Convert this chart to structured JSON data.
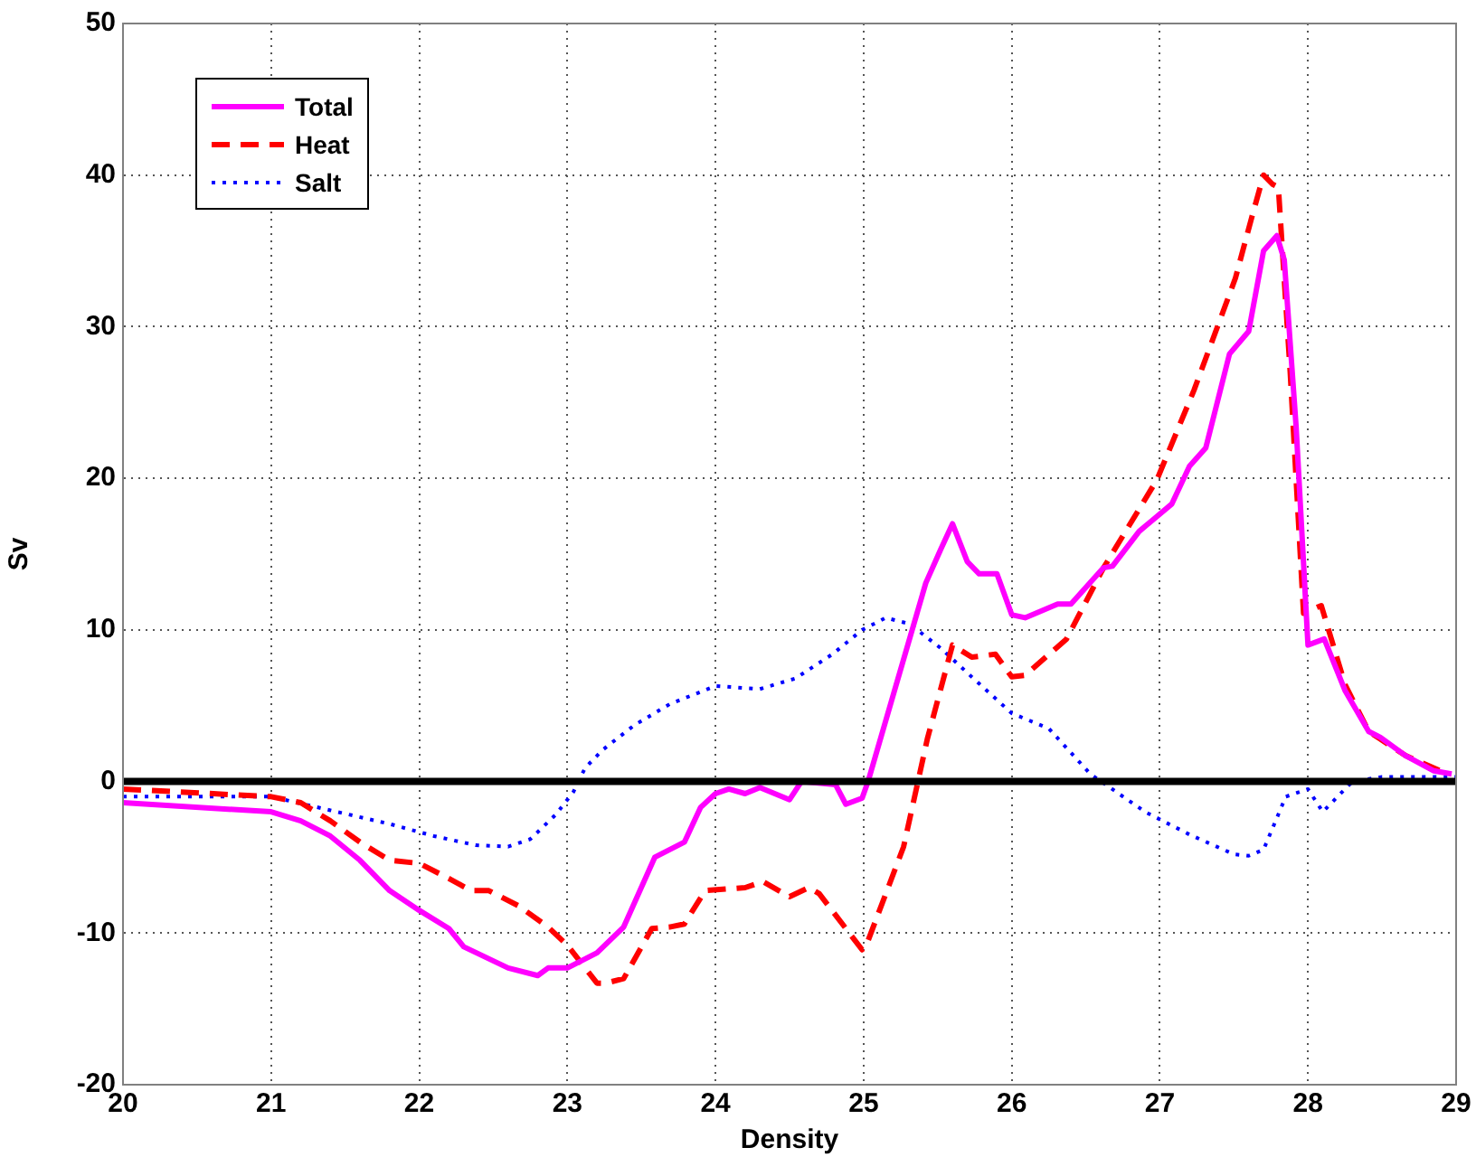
{
  "chart_data": {
    "type": "line",
    "xlabel": "Density",
    "ylabel": "Sv",
    "xlim": [
      20,
      29
    ],
    "xticks": [
      20,
      21,
      22,
      23,
      24,
      25,
      26,
      27,
      28,
      29
    ],
    "ylim": [
      -20,
      50
    ],
    "yticks": [
      -20,
      -10,
      0,
      10,
      20,
      30,
      40,
      50
    ],
    "grid": true,
    "legend": "top left",
    "marker": "none",
    "ref_lines": [
      {
        "axis": "y",
        "value": 0,
        "color": "#000000",
        "line_style": "solid"
      }
    ],
    "series": [
      {
        "name": "Total",
        "color": "#ff00ff",
        "line_style": "solid",
        "x": [
          20,
          21,
          21.2,
          21.4,
          21.6,
          21.8,
          22,
          22.2,
          22.3,
          22.6,
          22.8,
          22.87,
          23,
          23.2,
          23.38,
          23.59,
          23.79,
          23.9,
          24,
          24.09,
          24.2,
          24.3,
          24.5,
          24.58,
          24.81,
          24.88,
          24.99,
          25.03,
          25.42,
          25.52,
          25.6,
          25.7,
          25.78,
          25.9,
          26,
          26.09,
          26.31,
          26.4,
          26.62,
          26.68,
          26.86,
          27.08,
          27.2,
          27.31,
          27.47,
          27.6,
          27.7,
          27.79,
          27.84,
          27.92,
          28,
          28.11,
          28.25,
          28.41,
          28.49,
          28.66,
          28.85,
          28.97
        ],
        "values": [
          -1.4,
          -2,
          -2.6,
          -3.6,
          -5.2,
          -7.2,
          -8.5,
          -9.7,
          -10.9,
          -12.3,
          -12.8,
          -12.3,
          -12.3,
          -11.3,
          -9.6,
          -5,
          -4,
          -1.7,
          -0.8,
          -0.5,
          -0.8,
          -0.4,
          -1.2,
          0,
          -0.2,
          -1.5,
          -1.1,
          0,
          13.1,
          15.3,
          17,
          14.5,
          13.7,
          13.7,
          11,
          10.8,
          11.7,
          11.7,
          14.1,
          14.2,
          16.5,
          18.3,
          20.8,
          22,
          28.2,
          29.7,
          35,
          36,
          34.4,
          23.4,
          9,
          9.4,
          6,
          3.3,
          2.9,
          1.7,
          0.7,
          0.5
        ]
      },
      {
        "name": "Heat",
        "color": "#ff0000",
        "line_style": "dashed",
        "x": [
          20,
          21,
          21.2,
          21.4,
          21.6,
          21.8,
          22,
          22.2,
          22.35,
          22.47,
          22.67,
          22.87,
          23,
          23.2,
          23.26,
          23.38,
          23.57,
          23.69,
          23.79,
          23.93,
          24.2,
          24.32,
          24.5,
          24.63,
          24.7,
          24.99,
          25.03,
          25.27,
          25.43,
          25.6,
          25.73,
          25.89,
          26,
          26.09,
          26.37,
          26.62,
          26.98,
          27.23,
          27.51,
          27.62,
          27.7,
          27.76,
          27.8,
          27.88,
          27.97,
          28.09,
          28.25,
          28.41,
          28.66,
          28.94
        ],
        "values": [
          -0.5,
          -1,
          -1.4,
          -2.6,
          -4,
          -5.2,
          -5.4,
          -6.4,
          -7.2,
          -7.2,
          -8.2,
          -9.6,
          -10.8,
          -13.3,
          -13.3,
          -13,
          -9.7,
          -9.6,
          -9.4,
          -7.2,
          -7,
          -6.6,
          -7.6,
          -7,
          -7.4,
          -11.1,
          -10.5,
          -4.3,
          2.8,
          9,
          8.2,
          8.4,
          6.9,
          7,
          9.4,
          14.1,
          19.9,
          25.8,
          33.2,
          37.2,
          40,
          39.4,
          39.2,
          27,
          11.1,
          11.6,
          6.4,
          3.3,
          1.7,
          0.5
        ]
      },
      {
        "name": "Salt",
        "color": "#0000ff",
        "line_style": "dotted",
        "x": [
          20,
          21,
          21.4,
          21.8,
          22.1,
          22.38,
          22.6,
          22.75,
          22.92,
          23.04,
          23.12,
          23.24,
          23.45,
          23.69,
          24,
          24.3,
          24.54,
          24.79,
          24.99,
          25.15,
          25.31,
          25.52,
          25.73,
          26,
          26.25,
          26.53,
          26.9,
          27.2,
          27.5,
          27.6,
          27.7,
          27.85,
          28,
          28.1,
          28.3,
          28.5,
          28.8,
          29
        ],
        "values": [
          -1,
          -1,
          -1.9,
          -2.8,
          -3.6,
          -4.2,
          -4.3,
          -3.8,
          -2.2,
          -0.7,
          0.9,
          2.1,
          3.7,
          5.1,
          6.3,
          6.1,
          6.8,
          8.4,
          10,
          10.8,
          10.4,
          8.8,
          6.9,
          4.5,
          3.5,
          0.5,
          -2,
          -3.5,
          -4.8,
          -4.9,
          -4.5,
          -1,
          -0.5,
          -2,
          0,
          0.3,
          0.3,
          0.3
        ]
      }
    ]
  }
}
